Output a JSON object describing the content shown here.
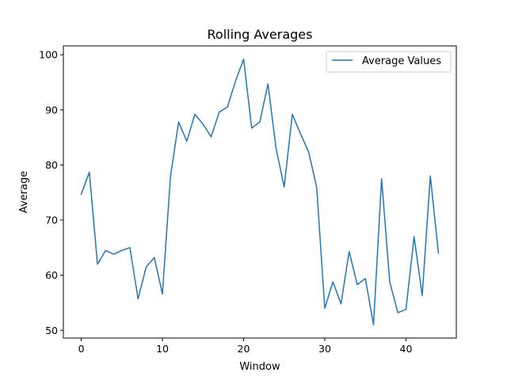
{
  "chart_data": {
    "type": "line",
    "title": "Rolling Averages",
    "xlabel": "Window",
    "ylabel": "Average",
    "xlim": [
      -2.2,
      46.2
    ],
    "ylim": [
      48.6,
      101.6
    ],
    "xticks": [
      0,
      10,
      20,
      30,
      40
    ],
    "yticks": [
      50,
      60,
      70,
      80,
      90,
      100
    ],
    "grid": false,
    "legend_position": "top-right",
    "series": [
      {
        "name": "Average Values",
        "color": "#1f77b4",
        "x": [
          0,
          1,
          2,
          3,
          4,
          5,
          6,
          7,
          8,
          9,
          10,
          11,
          12,
          13,
          14,
          15,
          16,
          17,
          18,
          19,
          20,
          21,
          22,
          23,
          24,
          25,
          26,
          27,
          28,
          29,
          30,
          31,
          32,
          33,
          34,
          35,
          36,
          37,
          38,
          39,
          40,
          41,
          42,
          43,
          44
        ],
        "values": [
          74.7,
          78.7,
          62.0,
          64.5,
          63.8,
          64.5,
          65.0,
          55.7,
          61.5,
          63.2,
          56.6,
          78.0,
          87.8,
          84.3,
          89.2,
          87.4,
          85.1,
          89.6,
          90.5,
          95.2,
          99.2,
          86.7,
          87.8,
          94.7,
          83.0,
          76.0,
          89.2,
          85.7,
          82.4,
          76.0,
          54.0,
          58.8,
          54.8,
          64.3,
          58.3,
          59.4,
          51.0,
          77.5,
          58.8,
          53.2,
          53.8,
          67.0,
          56.3,
          78.0,
          64.0
        ]
      }
    ]
  }
}
